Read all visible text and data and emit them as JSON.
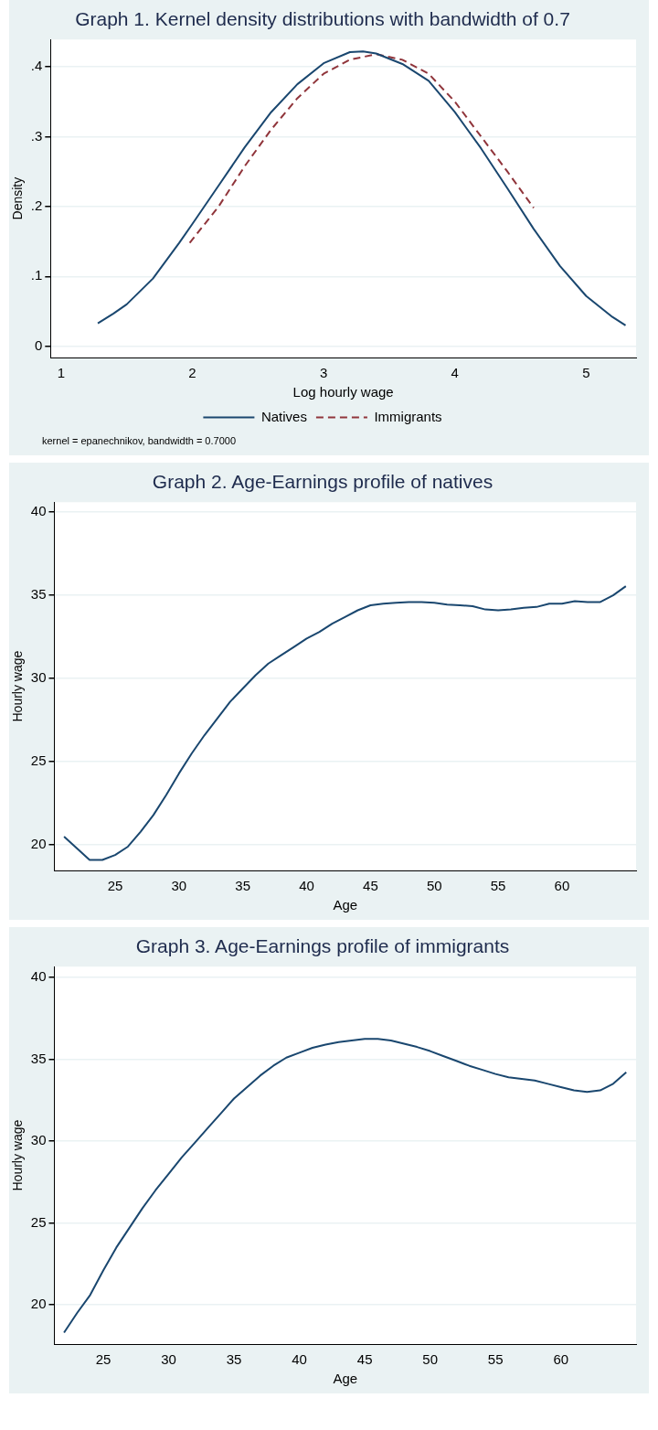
{
  "chart_data": [
    {
      "type": "line",
      "title": "Graph 1. Kernel density distributions with bandwidth of 0.7",
      "xlabel": "Log hourly wage",
      "ylabel": "Density",
      "xlim": [
        0.92,
        5.38
      ],
      "ylim": [
        -0.016,
        0.439
      ],
      "xticks": [
        1,
        2,
        3,
        4,
        5
      ],
      "yticks": [
        {
          "value": 0,
          "label": "0"
        },
        {
          "value": 0.1,
          "label": ".1"
        },
        {
          "value": 0.2,
          "label": ".2"
        },
        {
          "value": 0.3,
          "label": ".3"
        },
        {
          "value": 0.4,
          "label": ".4"
        }
      ],
      "grid": "y",
      "legend": "bottom",
      "marker": "none",
      "annotations": [
        "kernel = epanechnikov, bandwidth = 0.7000"
      ],
      "series": [
        {
          "name": "Natives",
          "color": "#1a476f",
          "line_style": "solid",
          "x": [
            1.28,
            1.4,
            1.5,
            1.7,
            1.9,
            2.0,
            2.2,
            2.4,
            2.6,
            2.8,
            3.0,
            3.2,
            3.3,
            3.4,
            3.6,
            3.8,
            4.0,
            4.2,
            4.4,
            4.6,
            4.8,
            5.0,
            5.2,
            5.3
          ],
          "values": [
            0.033,
            0.047,
            0.06,
            0.097,
            0.148,
            0.175,
            0.23,
            0.285,
            0.335,
            0.375,
            0.405,
            0.421,
            0.422,
            0.419,
            0.404,
            0.38,
            0.335,
            0.283,
            0.226,
            0.168,
            0.115,
            0.072,
            0.042,
            0.03
          ]
        },
        {
          "name": "Immigrants",
          "color": "#90353b",
          "line_style": "dashed",
          "x": [
            1.98,
            2.2,
            2.4,
            2.6,
            2.8,
            3.0,
            3.2,
            3.4,
            3.6,
            3.8,
            4.0,
            4.2,
            4.4,
            4.6
          ],
          "values": [
            0.148,
            0.2,
            0.258,
            0.31,
            0.355,
            0.39,
            0.41,
            0.418,
            0.41,
            0.39,
            0.35,
            0.3,
            0.25,
            0.198
          ]
        }
      ]
    },
    {
      "type": "line",
      "title": "Graph 2. Age-Earnings profile of natives",
      "xlabel": "Age",
      "ylabel": "Hourly wage",
      "xlim": [
        20.24,
        65.8
      ],
      "ylim": [
        18.47,
        40.6
      ],
      "xticks": [
        25,
        30,
        35,
        40,
        45,
        50,
        55,
        60
      ],
      "yticks": [
        20,
        25,
        30,
        35,
        40
      ],
      "grid": "y",
      "marker": "none",
      "x": [
        21,
        22,
        23,
        24,
        25,
        26,
        27,
        28,
        29,
        30,
        31,
        32,
        33,
        34,
        35,
        36,
        37,
        38,
        39,
        40,
        41,
        42,
        43,
        44,
        45,
        46,
        47,
        48,
        49,
        50,
        51,
        52,
        53,
        54,
        55,
        56,
        57,
        58,
        59,
        60,
        61,
        62,
        63,
        64,
        65
      ],
      "series": [
        {
          "color": "#1a476f",
          "line_style": "solid",
          "values": [
            20.5,
            19.8,
            19.1,
            19.1,
            19.4,
            19.9,
            20.8,
            21.8,
            23.0,
            24.3,
            25.5,
            26.6,
            27.6,
            28.6,
            29.4,
            30.2,
            30.9,
            31.4,
            31.9,
            32.4,
            32.8,
            33.3,
            33.7,
            34.1,
            34.4,
            34.5,
            34.55,
            34.6,
            34.6,
            34.55,
            34.45,
            34.4,
            34.35,
            34.15,
            34.1,
            34.15,
            34.25,
            34.3,
            34.5,
            34.5,
            34.65,
            34.6,
            34.6,
            35.0,
            35.55
          ]
        }
      ]
    },
    {
      "type": "line",
      "title": "Graph 3. Age-Earnings profile of immigrants",
      "xlabel": "Age",
      "ylabel": "Hourly wage",
      "xlim": [
        21.26,
        65.75
      ],
      "ylim": [
        17.6,
        40.66
      ],
      "xticks": [
        25,
        30,
        35,
        40,
        45,
        50,
        55,
        60
      ],
      "yticks": [
        20,
        25,
        30,
        35,
        40
      ],
      "grid": "y",
      "marker": "none",
      "x": [
        22,
        23,
        24,
        25,
        26,
        27,
        28,
        29,
        30,
        31,
        32,
        33,
        34,
        35,
        36,
        37,
        38,
        39,
        40,
        41,
        42,
        43,
        44,
        45,
        46,
        47,
        48,
        49,
        50,
        51,
        52,
        53,
        54,
        55,
        56,
        57,
        58,
        59,
        60,
        61,
        62,
        63,
        64,
        65
      ],
      "series": [
        {
          "color": "#1a476f",
          "line_style": "solid",
          "values": [
            18.3,
            19.5,
            20.6,
            22.1,
            23.5,
            24.7,
            25.9,
            27.0,
            28.0,
            29.0,
            29.9,
            30.8,
            31.7,
            32.6,
            33.3,
            34.0,
            34.6,
            35.1,
            35.4,
            35.7,
            35.9,
            36.05,
            36.15,
            36.25,
            36.25,
            36.15,
            35.95,
            35.75,
            35.5,
            35.2,
            34.9,
            34.6,
            34.35,
            34.1,
            33.9,
            33.8,
            33.7,
            33.5,
            33.3,
            33.1,
            33.0,
            33.1,
            33.5,
            34.2
          ]
        }
      ]
    }
  ]
}
